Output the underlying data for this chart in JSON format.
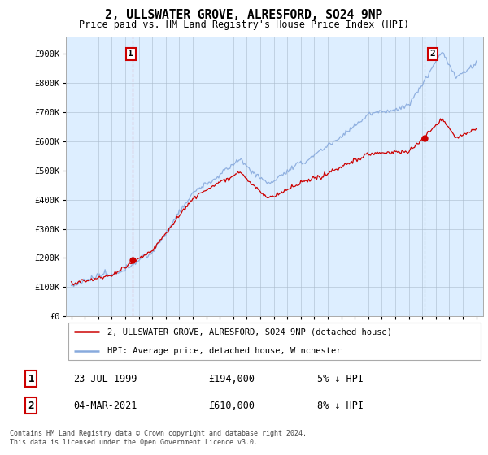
{
  "title": "2, ULLSWATER GROVE, ALRESFORD, SO24 9NP",
  "subtitle": "Price paid vs. HM Land Registry's House Price Index (HPI)",
  "ylabel_ticks": [
    "£0",
    "£100K",
    "£200K",
    "£300K",
    "£400K",
    "£500K",
    "£600K",
    "£700K",
    "£800K",
    "£900K"
  ],
  "ytick_values": [
    0,
    100000,
    200000,
    300000,
    400000,
    500000,
    600000,
    700000,
    800000,
    900000
  ],
  "ylim": [
    0,
    960000
  ],
  "xlim_start": 1994.6,
  "xlim_end": 2025.5,
  "xticks": [
    1995,
    1996,
    1997,
    1998,
    1999,
    2000,
    2001,
    2002,
    2003,
    2004,
    2005,
    2006,
    2007,
    2008,
    2009,
    2010,
    2011,
    2012,
    2013,
    2014,
    2015,
    2016,
    2017,
    2018,
    2019,
    2020,
    2021,
    2022,
    2023,
    2024,
    2025
  ],
  "sale1_x": 1999.56,
  "sale1_y": 194000,
  "sale2_x": 2021.17,
  "sale2_y": 610000,
  "red_color": "#cc0000",
  "blue_color": "#88aadd",
  "chart_bg": "#ddeeff",
  "background_color": "#ffffff",
  "grid_color": "#aabbcc",
  "legend_label_red": "2, ULLSWATER GROVE, ALRESFORD, SO24 9NP (detached house)",
  "legend_label_blue": "HPI: Average price, detached house, Winchester",
  "note1_date": "23-JUL-1999",
  "note1_price": "£194,000",
  "note1_hpi": "5% ↓ HPI",
  "note2_date": "04-MAR-2021",
  "note2_price": "£610,000",
  "note2_hpi": "8% ↓ HPI",
  "copyright_text": "Contains HM Land Registry data © Crown copyright and database right 2024.\nThis data is licensed under the Open Government Licence v3.0."
}
